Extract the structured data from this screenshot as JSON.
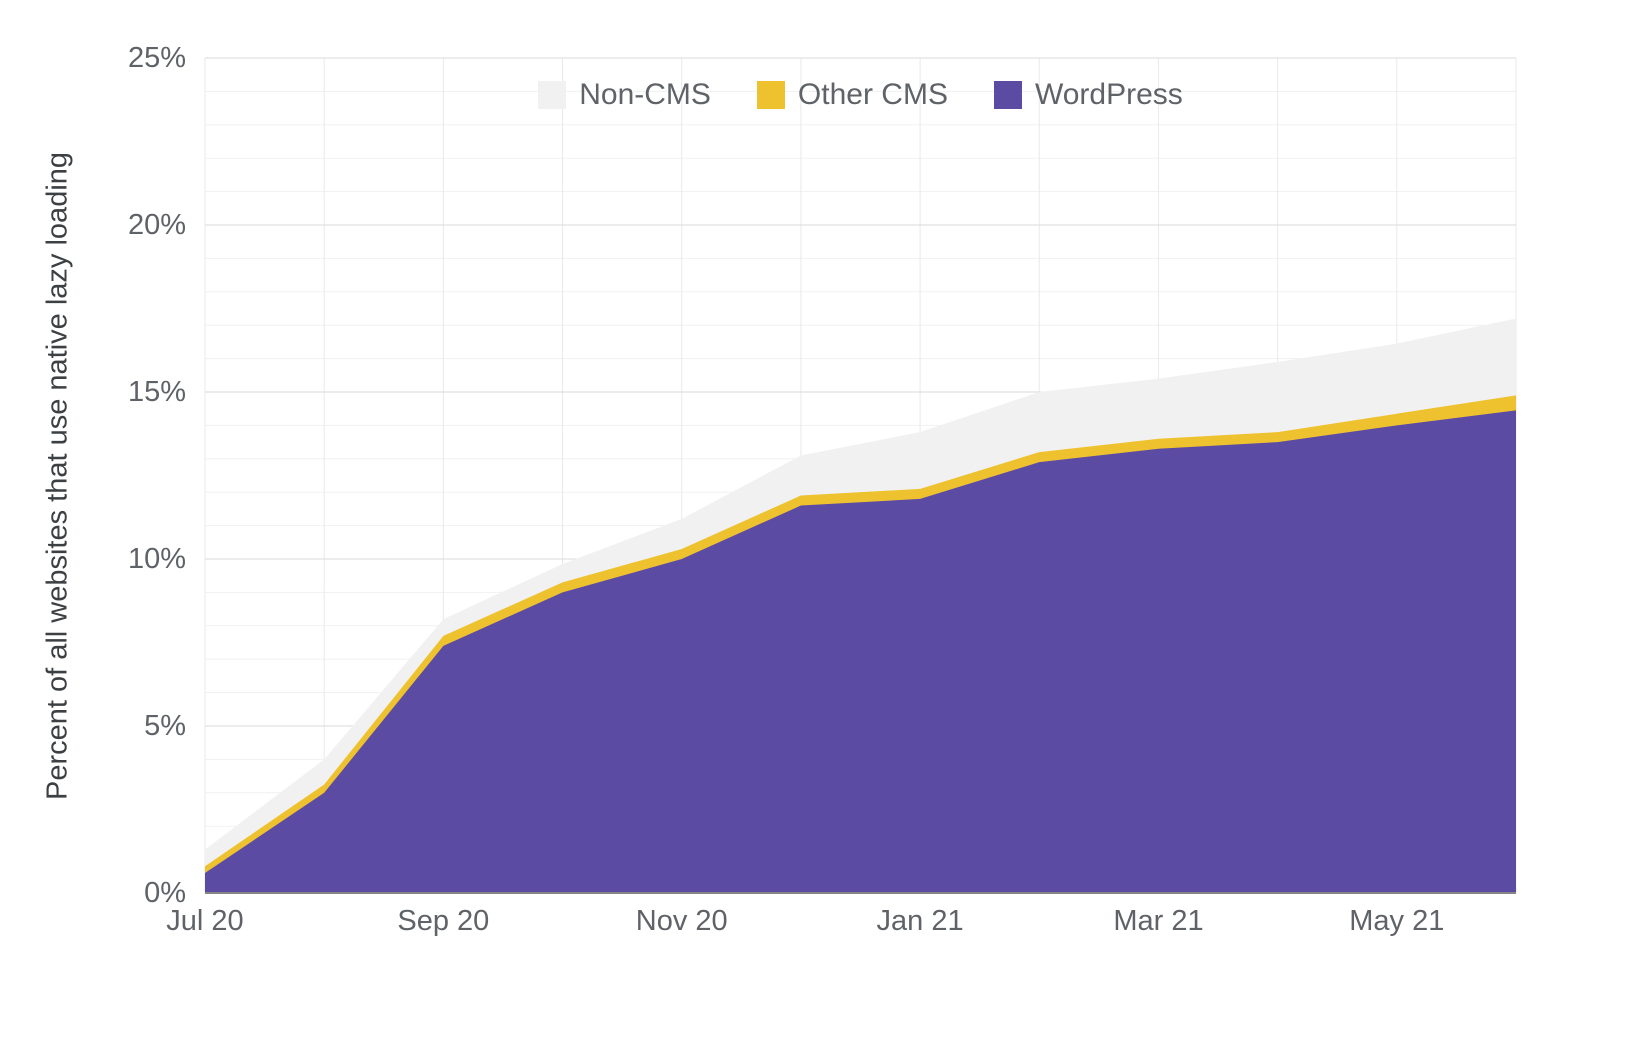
{
  "chart_data": {
    "type": "area",
    "stacked": true,
    "title": "",
    "ylabel": "Percent of all websites that use native lazy loading",
    "xlabel": "",
    "ylim": [
      0,
      25
    ],
    "grid": true,
    "legend_position": "top",
    "x": [
      "Jul 20",
      "Aug 20",
      "Sep 20",
      "Oct 20",
      "Nov 20",
      "Dec 20",
      "Jan 21",
      "Feb 21",
      "Mar 21",
      "Apr 21",
      "May 21",
      "Jun 21"
    ],
    "series": [
      {
        "name": "WordPress",
        "color": "#5c4ba3",
        "values": [
          0.6,
          3.0,
          7.4,
          9.0,
          10.0,
          11.6,
          11.8,
          12.9,
          13.3,
          13.5,
          14.0,
          14.45
        ]
      },
      {
        "name": "Other CMS",
        "color": "#eec22f",
        "values": [
          0.2,
          0.25,
          0.3,
          0.3,
          0.3,
          0.3,
          0.3,
          0.3,
          0.3,
          0.3,
          0.35,
          0.45
        ]
      },
      {
        "name": "Non-CMS",
        "color": "#f1f1f1",
        "values": [
          0.5,
          0.75,
          0.5,
          0.55,
          0.9,
          1.2,
          1.7,
          1.8,
          1.8,
          2.1,
          2.1,
          2.3
        ]
      }
    ],
    "legend": {
      "items": [
        {
          "label": "Non-CMS",
          "color": "#f1f1f1"
        },
        {
          "label": "Other CMS",
          "color": "#eec22f"
        },
        {
          "label": "WordPress",
          "color": "#5c4ba3"
        }
      ]
    },
    "yticks": [
      {
        "value": 0,
        "label": "0%"
      },
      {
        "value": 5,
        "label": "5%"
      },
      {
        "value": 10,
        "label": "10%"
      },
      {
        "value": 15,
        "label": "15%"
      },
      {
        "value": 20,
        "label": "20%"
      },
      {
        "value": 25,
        "label": "25%"
      }
    ],
    "xticks": [
      {
        "index": 0,
        "label": "Jul 20"
      },
      {
        "index": 2,
        "label": "Sep 20"
      },
      {
        "index": 4,
        "label": "Nov 20"
      },
      {
        "index": 6,
        "label": "Jan 21"
      },
      {
        "index": 8,
        "label": "Mar 21"
      },
      {
        "index": 10,
        "label": "May 21"
      }
    ]
  }
}
